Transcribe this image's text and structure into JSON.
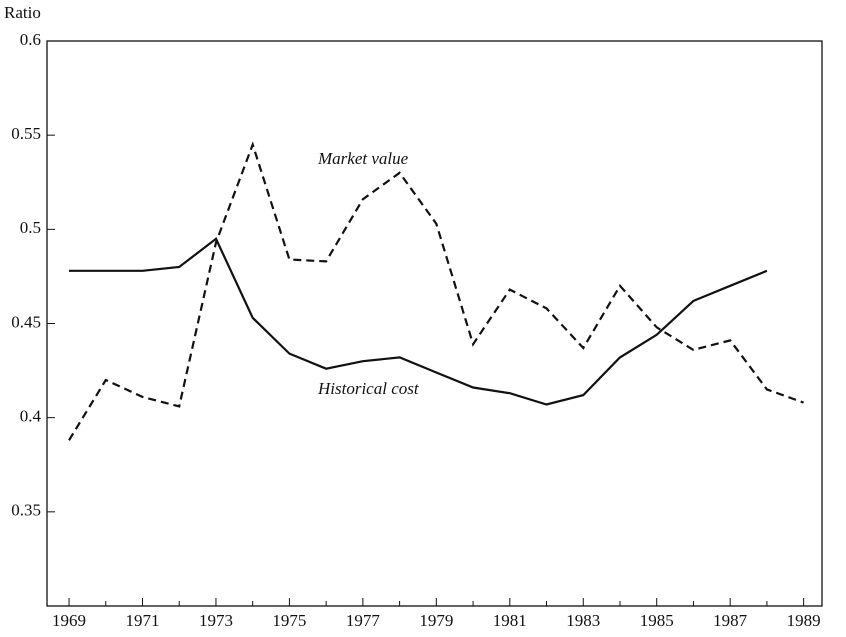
{
  "chart_data": {
    "type": "line",
    "y_label": "Ratio",
    "x": [
      1969,
      1970,
      1971,
      1972,
      1973,
      1974,
      1975,
      1976,
      1977,
      1978,
      1979,
      1980,
      1981,
      1982,
      1983,
      1984,
      1985,
      1986,
      1987,
      1988,
      1989
    ],
    "series": [
      {
        "name": "Historical cost",
        "color": "#111111",
        "dashed": false,
        "values": [
          0.478,
          0.478,
          0.478,
          0.48,
          0.495,
          0.453,
          0.434,
          0.426,
          0.43,
          0.432,
          0.424,
          0.416,
          0.413,
          0.407,
          0.412,
          0.432,
          0.444,
          0.462,
          0.47,
          0.478,
          null
        ]
      },
      {
        "name": "Market value",
        "color": "#111111",
        "dashed": true,
        "values": [
          0.388,
          0.42,
          0.411,
          0.406,
          0.493,
          0.545,
          0.484,
          0.483,
          0.516,
          0.53,
          0.503,
          0.439,
          0.468,
          0.458,
          0.437,
          0.47,
          0.448,
          0.436,
          0.441,
          0.415,
          0.408
        ]
      }
    ],
    "xlim": [
      1968.4,
      1989.5
    ],
    "ylim": [
      0.3,
      0.6
    ],
    "xticks": [
      1969,
      1971,
      1973,
      1975,
      1977,
      1979,
      1981,
      1983,
      1985,
      1987,
      1989
    ],
    "xticks_minor": [
      1970,
      1972,
      1974,
      1976,
      1978,
      1980,
      1982,
      1984,
      1986,
      1988
    ],
    "yticks": [
      0.35,
      0.4,
      0.45,
      0.5,
      0.55,
      0.6
    ],
    "grid": false
  }
}
